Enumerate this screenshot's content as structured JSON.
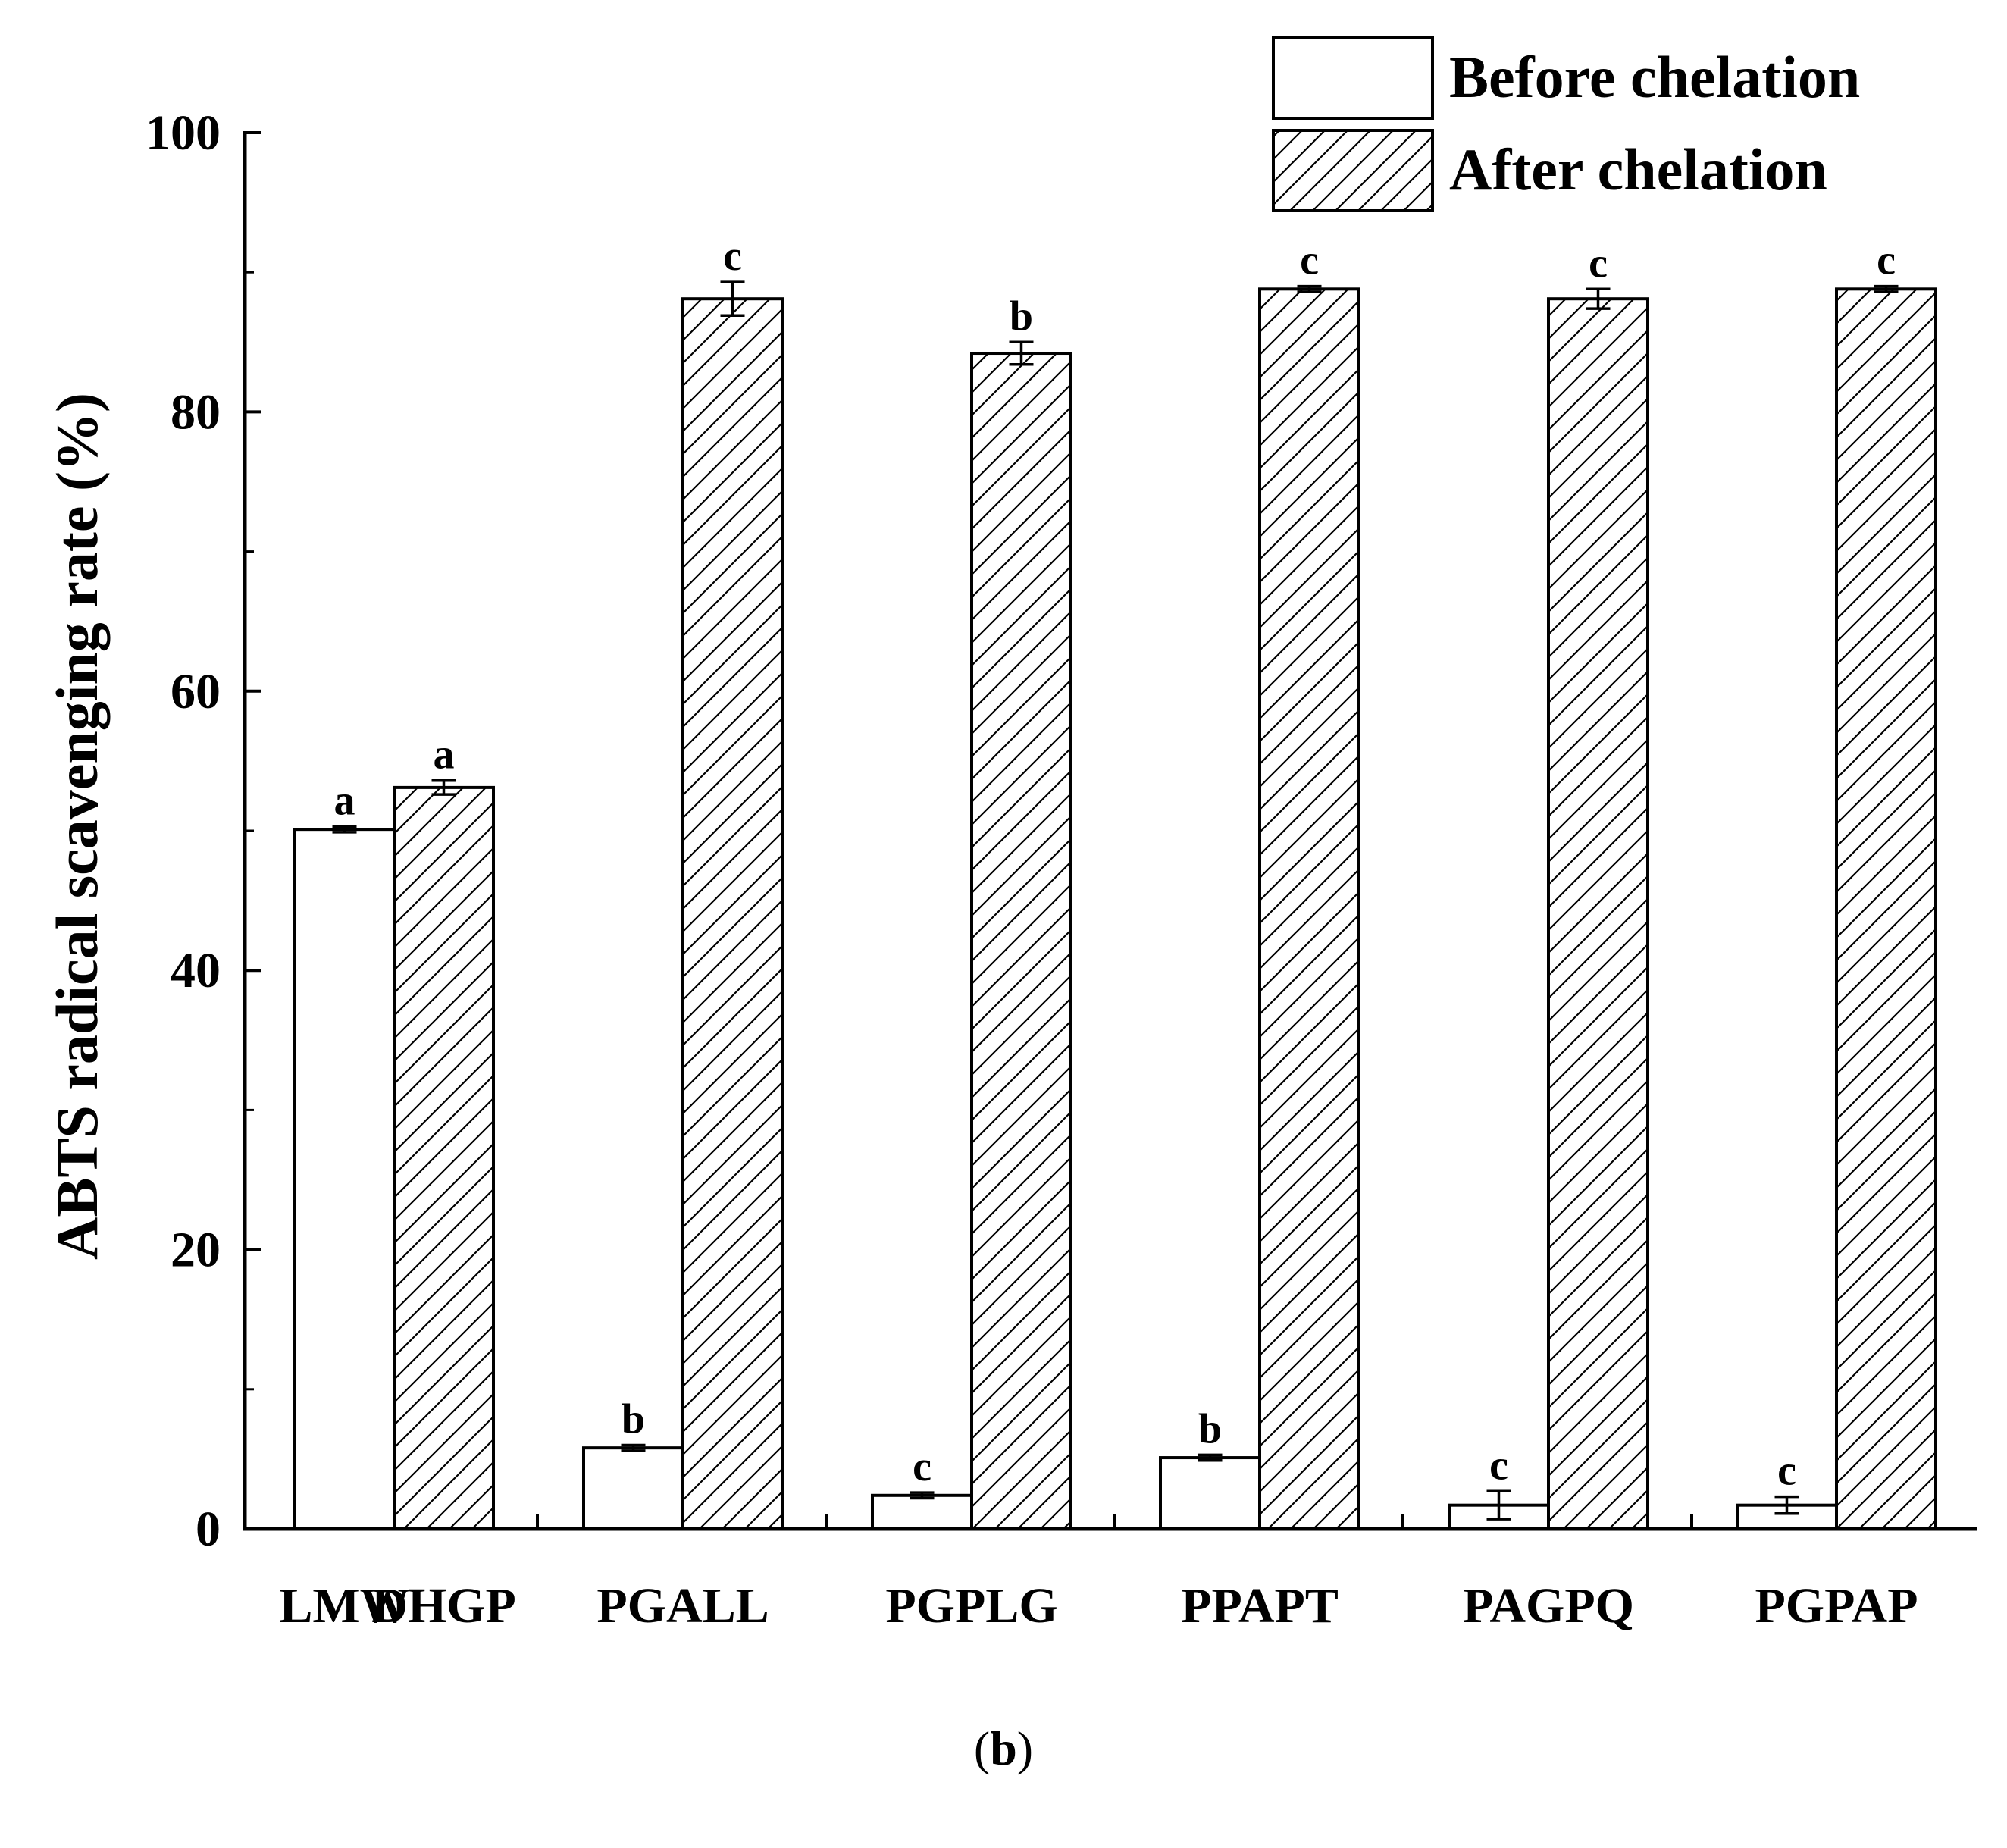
{
  "chart_data": {
    "type": "bar",
    "title": "",
    "xlabel": "",
    "ylabel": "ABTS radical scavenging rate (%)",
    "ylim": [
      0,
      100
    ],
    "yticks": [
      0,
      20,
      40,
      60,
      80,
      100
    ],
    "legend_position": "top-right",
    "groups": [
      {
        "labels": [
          "LMW",
          "DHGP"
        ],
        "before": {
          "value": 50.1,
          "error": 0.2,
          "letter": "a"
        },
        "after": {
          "value": 53.1,
          "error": 0.5,
          "letter": "a"
        },
        "paired": true
      },
      {
        "labels": [
          "PGALL"
        ],
        "before": {
          "value": 5.8,
          "error": 0.2,
          "letter": "b"
        },
        "after": {
          "value": 88.1,
          "error": 1.2,
          "letter": "c"
        }
      },
      {
        "labels": [
          "PGPLG"
        ],
        "before": {
          "value": 2.4,
          "error": 0.2,
          "letter": "c"
        },
        "after": {
          "value": 84.2,
          "error": 0.8,
          "letter": "b"
        }
      },
      {
        "labels": [
          "PPAPT"
        ],
        "before": {
          "value": 5.1,
          "error": 0.2,
          "letter": "b"
        },
        "after": {
          "value": 88.8,
          "error": 0.2,
          "letter": "c"
        }
      },
      {
        "labels": [
          "PAGPQ"
        ],
        "before": {
          "value": 1.7,
          "error": 1.0,
          "letter": "c"
        },
        "after": {
          "value": 88.1,
          "error": 0.7,
          "letter": "c"
        }
      },
      {
        "labels": [
          "PGPAP"
        ],
        "before": {
          "value": 1.7,
          "error": 0.6,
          "letter": "c"
        },
        "after": {
          "value": 88.8,
          "error": 0.2,
          "letter": "c"
        }
      }
    ],
    "series": [
      {
        "name": "Before chelation",
        "pattern": "none"
      },
      {
        "name": "After chelation",
        "pattern": "diagonal-hatch"
      }
    ],
    "colors": {
      "axis": "#000000",
      "bar_fill": "#ffffff",
      "bar_stroke": "#000000",
      "ylabel": "#000000"
    }
  },
  "caption": {
    "open": "(",
    "letter": "b",
    "close": ")"
  }
}
